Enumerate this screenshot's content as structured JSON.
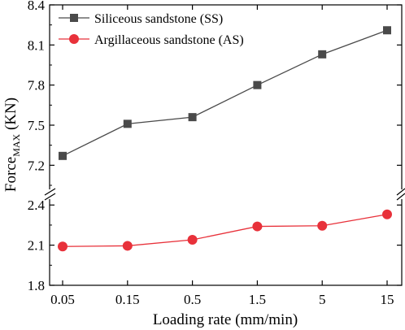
{
  "chart_data": {
    "type": "line",
    "xlabel": "Loading rate (mm/min)",
    "ylabel": {
      "main": "Force",
      "subscript": "MAX",
      "unit": " (KN)"
    },
    "categories": [
      "0.05",
      "0.15",
      "0.5",
      "1.5",
      "5",
      "15"
    ],
    "y_axis": {
      "broken": true,
      "upper_range": [
        7.05,
        8.4
      ],
      "lower_range": [
        1.8,
        2.45
      ],
      "upper_ticks": [
        "7.2",
        "7.5",
        "7.8",
        "8.1",
        "8.4"
      ],
      "lower_ticks": [
        "1.8",
        "2.1",
        "2.4"
      ]
    },
    "legend_position": "top-left",
    "series": [
      {
        "name": "Siliceous sandstone (SS)",
        "values": [
          7.27,
          7.51,
          7.56,
          7.8,
          8.03,
          8.21
        ],
        "color": "#4a4a4a",
        "marker": "square",
        "segment": "upper"
      },
      {
        "name": "Argillaceous sandstone (AS)",
        "values": [
          2.09,
          2.095,
          2.14,
          2.24,
          2.245,
          2.33
        ],
        "color": "#e8313a",
        "marker": "circle",
        "segment": "lower"
      }
    ]
  }
}
